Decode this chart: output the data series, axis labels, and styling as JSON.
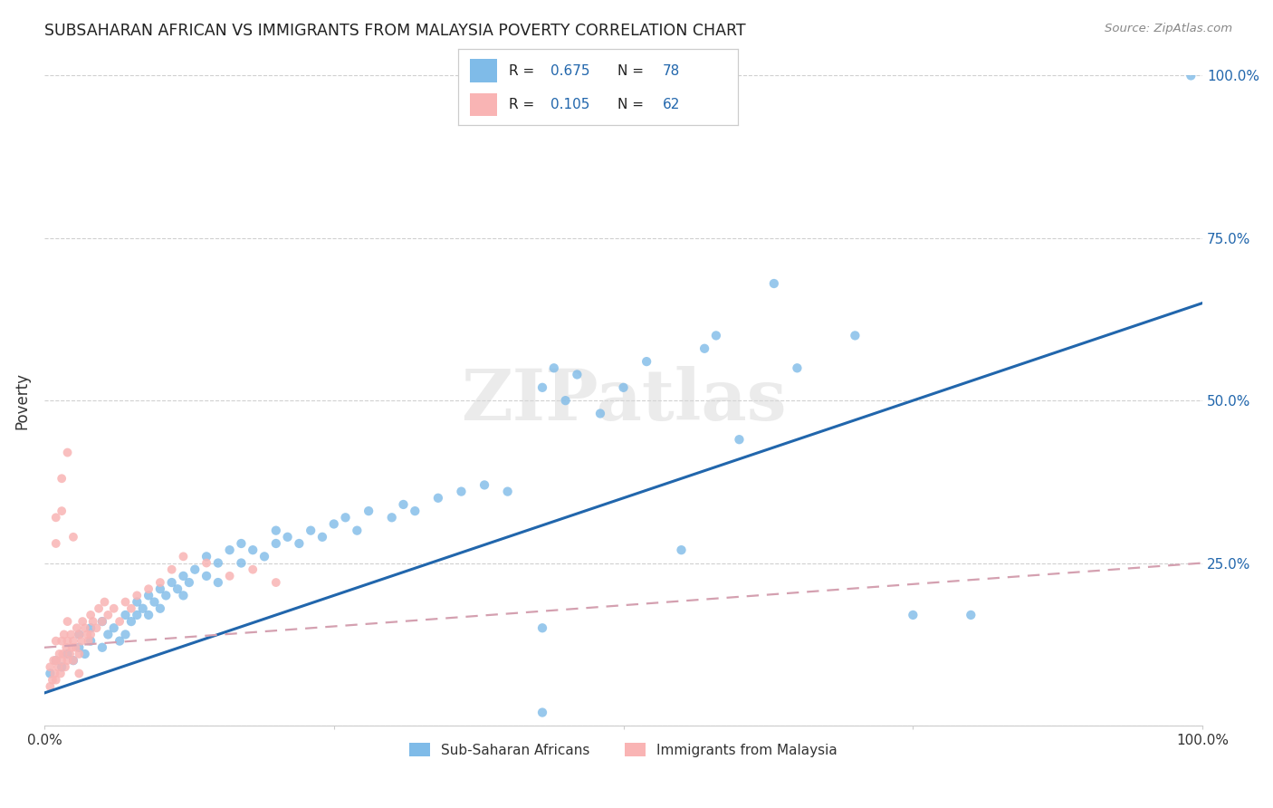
{
  "title": "SUBSAHARAN AFRICAN VS IMMIGRANTS FROM MALAYSIA POVERTY CORRELATION CHART",
  "source": "Source: ZipAtlas.com",
  "ylabel": "Poverty",
  "legend1_color": "#7fbbe8",
  "legend2_color": "#f9b4b4",
  "trendline1_color": "#2166ac",
  "trendline2_color": "#d4a0b0",
  "watermark": "ZIPatlas",
  "R1": 0.675,
  "N1": 78,
  "R2": 0.105,
  "N2": 62,
  "blue_x": [
    0.005,
    0.01,
    0.015,
    0.02,
    0.025,
    0.03,
    0.03,
    0.035,
    0.04,
    0.04,
    0.05,
    0.05,
    0.055,
    0.06,
    0.065,
    0.07,
    0.07,
    0.075,
    0.08,
    0.08,
    0.085,
    0.09,
    0.09,
    0.095,
    0.1,
    0.1,
    0.105,
    0.11,
    0.115,
    0.12,
    0.12,
    0.125,
    0.13,
    0.14,
    0.14,
    0.15,
    0.15,
    0.16,
    0.17,
    0.17,
    0.18,
    0.19,
    0.2,
    0.2,
    0.21,
    0.22,
    0.23,
    0.24,
    0.25,
    0.26,
    0.27,
    0.28,
    0.3,
    0.31,
    0.32,
    0.34,
    0.36,
    0.38,
    0.4,
    0.43,
    0.44,
    0.45,
    0.46,
    0.48,
    0.5,
    0.52,
    0.55,
    0.57,
    0.6,
    0.63,
    0.65,
    0.7,
    0.75,
    0.8,
    0.58,
    0.43,
    0.43,
    0.99
  ],
  "blue_y": [
    0.08,
    0.1,
    0.09,
    0.11,
    0.1,
    0.12,
    0.14,
    0.11,
    0.13,
    0.15,
    0.12,
    0.16,
    0.14,
    0.15,
    0.13,
    0.14,
    0.17,
    0.16,
    0.17,
    0.19,
    0.18,
    0.17,
    0.2,
    0.19,
    0.18,
    0.21,
    0.2,
    0.22,
    0.21,
    0.2,
    0.23,
    0.22,
    0.24,
    0.23,
    0.26,
    0.22,
    0.25,
    0.27,
    0.25,
    0.28,
    0.27,
    0.26,
    0.28,
    0.3,
    0.29,
    0.28,
    0.3,
    0.29,
    0.31,
    0.32,
    0.3,
    0.33,
    0.32,
    0.34,
    0.33,
    0.35,
    0.36,
    0.37,
    0.36,
    0.52,
    0.55,
    0.5,
    0.54,
    0.48,
    0.52,
    0.56,
    0.27,
    0.58,
    0.44,
    0.68,
    0.55,
    0.6,
    0.17,
    0.17,
    0.6,
    0.02,
    0.15,
    1.0
  ],
  "pink_x": [
    0.005,
    0.005,
    0.007,
    0.008,
    0.009,
    0.01,
    0.01,
    0.01,
    0.012,
    0.013,
    0.014,
    0.015,
    0.015,
    0.016,
    0.017,
    0.018,
    0.019,
    0.02,
    0.02,
    0.02,
    0.022,
    0.023,
    0.024,
    0.025,
    0.025,
    0.027,
    0.028,
    0.03,
    0.03,
    0.032,
    0.033,
    0.035,
    0.037,
    0.038,
    0.04,
    0.04,
    0.042,
    0.045,
    0.047,
    0.05,
    0.052,
    0.055,
    0.06,
    0.065,
    0.07,
    0.075,
    0.08,
    0.09,
    0.1,
    0.11,
    0.12,
    0.14,
    0.16,
    0.18,
    0.2,
    0.01,
    0.01,
    0.015,
    0.015,
    0.02,
    0.025,
    0.03
  ],
  "pink_y": [
    0.06,
    0.09,
    0.07,
    0.1,
    0.08,
    0.07,
    0.1,
    0.13,
    0.09,
    0.11,
    0.08,
    0.1,
    0.13,
    0.11,
    0.14,
    0.09,
    0.12,
    0.1,
    0.13,
    0.16,
    0.11,
    0.14,
    0.12,
    0.1,
    0.13,
    0.12,
    0.15,
    0.11,
    0.14,
    0.13,
    0.16,
    0.15,
    0.14,
    0.13,
    0.14,
    0.17,
    0.16,
    0.15,
    0.18,
    0.16,
    0.19,
    0.17,
    0.18,
    0.16,
    0.19,
    0.18,
    0.2,
    0.21,
    0.22,
    0.24,
    0.26,
    0.25,
    0.23,
    0.24,
    0.22,
    0.32,
    0.28,
    0.33,
    0.38,
    0.42,
    0.29,
    0.08
  ]
}
